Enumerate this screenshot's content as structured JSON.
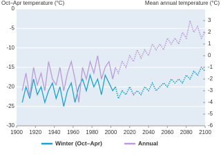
{
  "chart_data": {
    "type": "line",
    "y_label": "Oct–Apr temperature (°C)",
    "y2_label": "Mean annual temperature (°C)",
    "xlim": [
      1900,
      2100
    ],
    "xticks": [
      1900,
      1920,
      1940,
      1960,
      1980,
      2000,
      2020,
      2040,
      2060,
      2080,
      2100
    ],
    "ylim": [
      -30,
      0
    ],
    "yticks": [
      0,
      -5,
      -10,
      -15,
      -20,
      -25,
      -30
    ],
    "y2lim": [
      -6,
      4
    ],
    "y2ticks": [
      3,
      2,
      1,
      0,
      -1,
      -2,
      -3,
      -4,
      -5,
      -6
    ],
    "grid": true,
    "series": [
      {
        "name": "Winter (Oct–Apr)",
        "color": "#1aa3cc",
        "axis": "y",
        "style": "solid",
        "x": [
          1906,
          1910,
          1914,
          1918,
          1922,
          1926,
          1930,
          1934,
          1938,
          1942,
          1946,
          1950,
          1954,
          1958,
          1962,
          1966,
          1970,
          1974,
          1978,
          1982,
          1986,
          1990,
          1994,
          1998,
          2002,
          2005
        ],
        "values": [
          -24,
          -20,
          -23,
          -18,
          -22,
          -20,
          -24,
          -21,
          -19,
          -23,
          -20,
          -25,
          -21,
          -19,
          -24,
          -20,
          -18,
          -21,
          -17,
          -20,
          -18,
          -22,
          -17,
          -19,
          -21,
          -20
        ]
      },
      {
        "name": "Annual",
        "color": "#b99bd8",
        "axis": "y2",
        "style": "solid",
        "x": [
          1906,
          1910,
          1914,
          1918,
          1922,
          1926,
          1930,
          1934,
          1938,
          1942,
          1946,
          1950,
          1954,
          1958,
          1962,
          1966,
          1970,
          1974,
          1978,
          1982,
          1986,
          1990,
          1994,
          1998,
          2002,
          2005
        ],
        "values": [
          -3,
          -1.5,
          -3.5,
          -1,
          -2.5,
          -1.5,
          -3,
          -0.5,
          -2,
          -2.5,
          -1,
          -3,
          -1.5,
          -0.5,
          -2,
          -4,
          -1,
          -2,
          -0.5,
          -1.5,
          0,
          -2,
          -1,
          -0.5,
          -2,
          -1
        ]
      },
      {
        "color": "#1aa3cc",
        "axis": "y",
        "style": "dotted",
        "x": [
          2005,
          2008,
          2012,
          2016,
          2020,
          2024,
          2028,
          2032,
          2036,
          2040,
          2044,
          2048,
          2052,
          2056,
          2060,
          2064,
          2068,
          2072,
          2076,
          2080,
          2084,
          2088,
          2092,
          2096,
          2100
        ],
        "values": [
          -20,
          -23,
          -21,
          -22,
          -20,
          -22,
          -21,
          -22,
          -20,
          -21,
          -19,
          -21,
          -20,
          -19,
          -20,
          -18,
          -19,
          -18,
          -19,
          -17,
          -18,
          -16,
          -17,
          -15,
          -16
        ]
      },
      {
        "color": "#b99bd8",
        "axis": "y2",
        "style": "dotted",
        "x": [
          2005,
          2008,
          2012,
          2016,
          2020,
          2024,
          2028,
          2032,
          2036,
          2040,
          2044,
          2048,
          2052,
          2056,
          2060,
          2064,
          2068,
          2072,
          2076,
          2080,
          2084,
          2088,
          2092,
          2096,
          2100
        ],
        "values": [
          -1,
          -1.5,
          -0.5,
          -1,
          0,
          -0.5,
          0.5,
          -0.2,
          0.5,
          0,
          1,
          0.5,
          1,
          0.5,
          1.5,
          1,
          1.5,
          1,
          2,
          1.5,
          3,
          2,
          2.5,
          1.5,
          2
        ]
      }
    ]
  }
}
